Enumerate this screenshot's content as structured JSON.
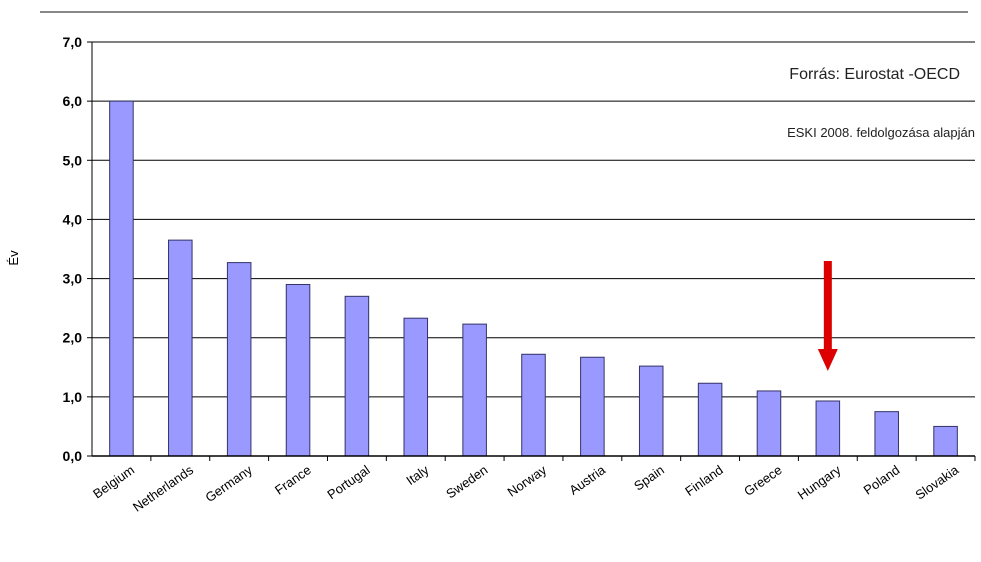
{
  "chart_data": {
    "type": "bar",
    "title": "",
    "xlabel": "",
    "ylabel": "Év",
    "ylim": [
      0,
      7
    ],
    "yticks": [
      0,
      1,
      2,
      3,
      4,
      5,
      6,
      7
    ],
    "ytick_labels": [
      "0,0",
      "1,0",
      "2,0",
      "3,0",
      "4,0",
      "5,0",
      "6,0",
      "7,0"
    ],
    "grid": true,
    "categories": [
      "Belgium",
      "Netherlands",
      "Germany",
      "France",
      "Portugal",
      "Italy",
      "Sweden",
      "Norway",
      "Austria",
      "Spain",
      "Finland",
      "Greece",
      "Hungary",
      "Poland",
      "Slovakia"
    ],
    "values": [
      6.0,
      3.65,
      3.27,
      2.9,
      2.7,
      2.33,
      2.23,
      1.72,
      1.67,
      1.52,
      1.23,
      1.1,
      0.93,
      0.75,
      0.5
    ],
    "annotations": {
      "source": "Forrás: Eurostat -OECD",
      "processing": "ESKI 2008. feldolgozása alapján",
      "highlight_category": "Hungary"
    },
    "colors": {
      "bar": "#9999ff",
      "bar_edge": "#333366",
      "arrow": "#dd0000",
      "grid": "#000000"
    }
  }
}
